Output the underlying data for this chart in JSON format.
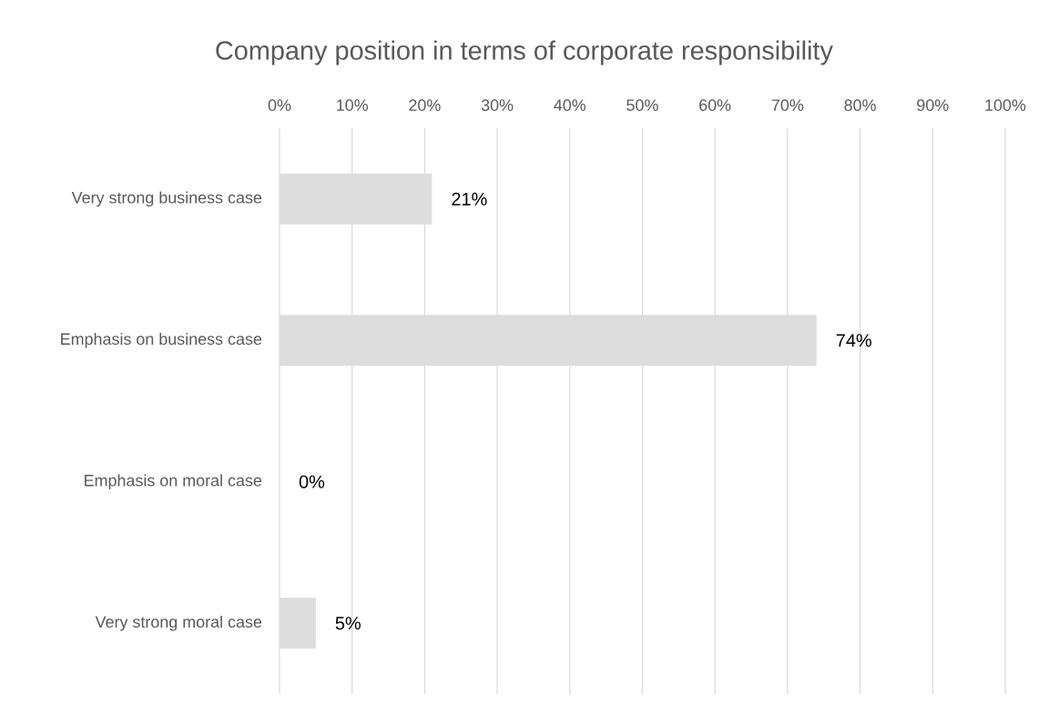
{
  "chart_data": {
    "type": "bar",
    "orientation": "horizontal",
    "title": "Company position in terms of corporate responsibility",
    "categories": [
      "Very strong business case",
      "Emphasis on business case",
      "Emphasis on moral case",
      "Very strong moral case"
    ],
    "values": [
      21,
      74,
      0,
      5
    ],
    "value_labels": [
      "21%",
      "74%",
      "0%",
      "5%"
    ],
    "color": "#dddddd",
    "xlim": [
      0,
      100
    ],
    "xticks": [
      {
        "value": 0,
        "label": "0%"
      },
      {
        "value": 10,
        "label": "10%"
      },
      {
        "value": 20,
        "label": "20%"
      },
      {
        "value": 30,
        "label": "30%"
      },
      {
        "value": 40,
        "label": "40%"
      },
      {
        "value": 50,
        "label": "50%"
      },
      {
        "value": 60,
        "label": "60%"
      },
      {
        "value": 70,
        "label": "70%"
      },
      {
        "value": 80,
        "label": "80%"
      },
      {
        "value": 90,
        "label": "90%"
      },
      {
        "value": 100,
        "label": "100%"
      }
    ],
    "grid": "x"
  }
}
